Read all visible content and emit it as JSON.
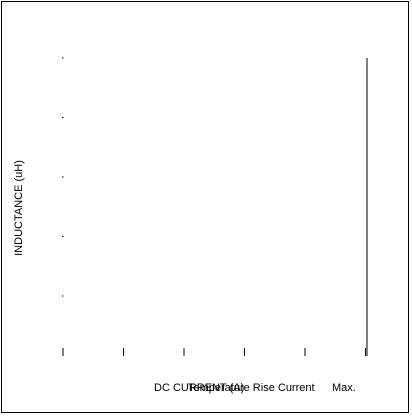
{
  "chart_data": {
    "type": "line",
    "title": "",
    "xlabel": "DC CURRENT (A)",
    "ylabel": "INDUCTANCE (uH)",
    "annotations": [
      "Temperature Rise Current",
      "Max."
    ],
    "x_tick_count": 6,
    "y_tick_count": 5,
    "series": []
  },
  "colors": {
    "background": "#ffffff",
    "frame": "#000000",
    "ink": "#000000"
  }
}
